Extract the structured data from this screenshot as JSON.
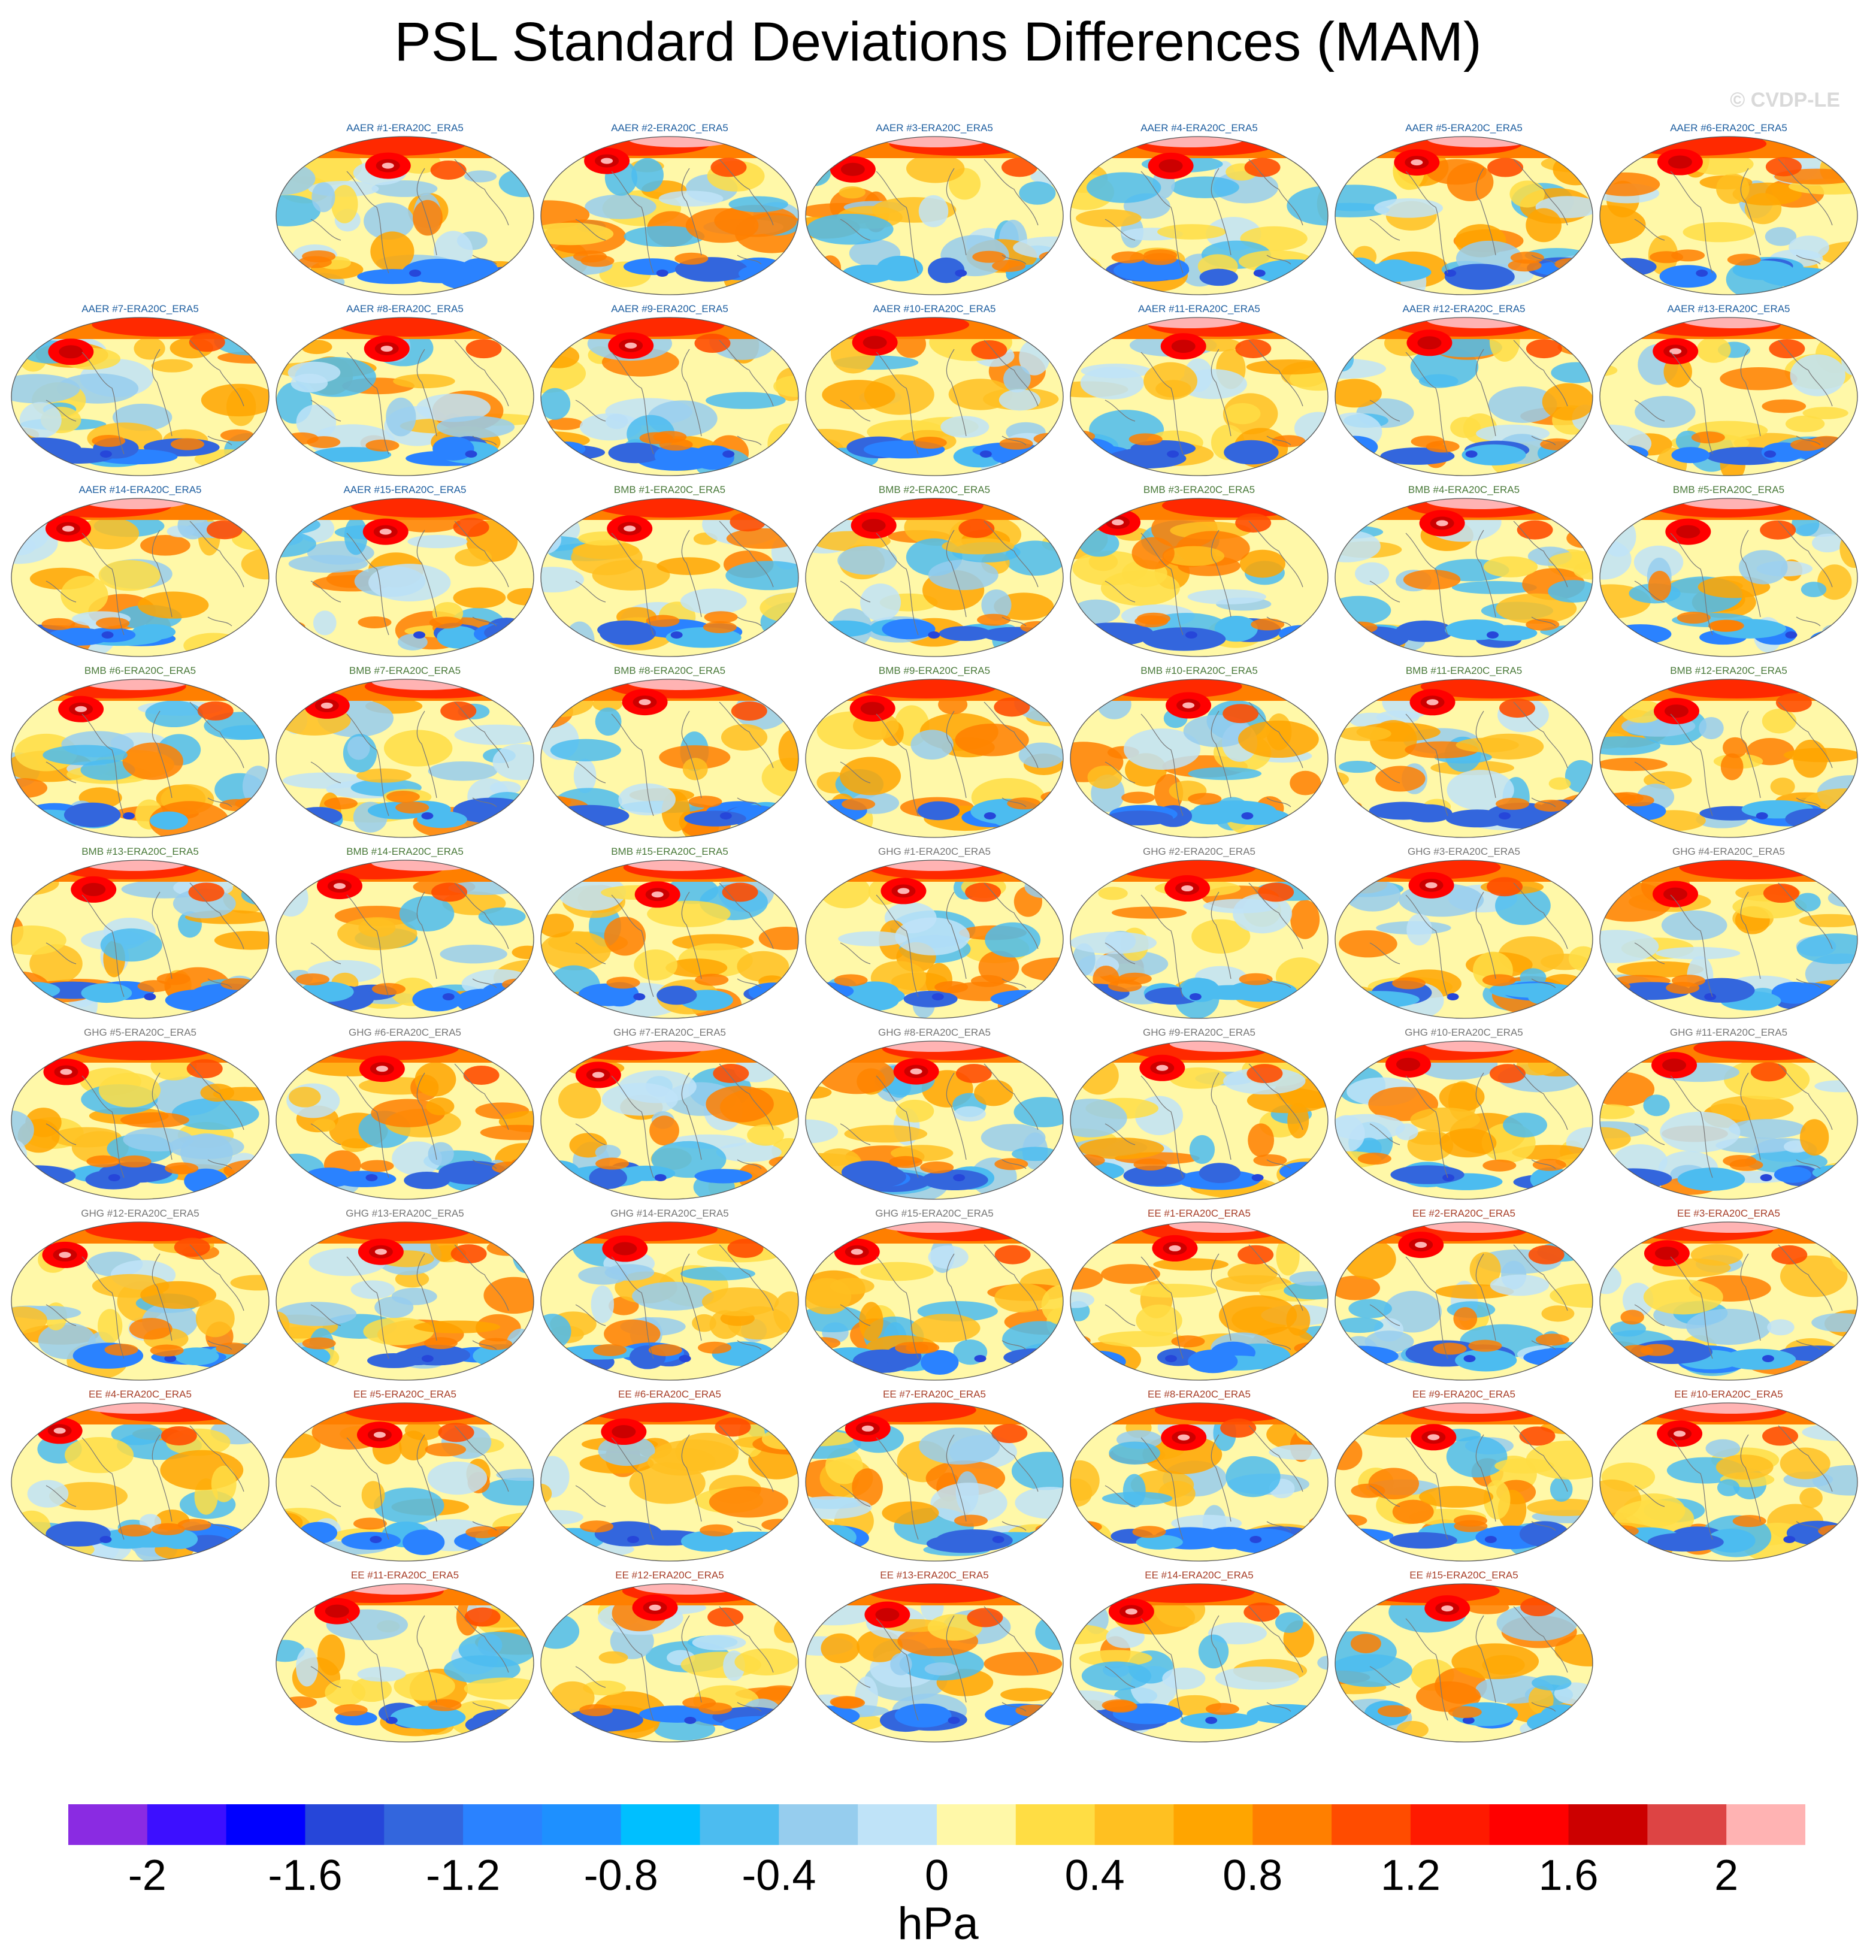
{
  "title": "PSL Standard Deviations Differences (MAM)",
  "copyright": "© CVDP-LE",
  "unit": "hPa",
  "group_colors": {
    "AAER": "#1f5fa0",
    "BMB": "#4a7a3a",
    "GHG": "#777777",
    "EE": "#a8402a"
  },
  "panels": [
    {
      "label": "AAER #1-ERA20C_ERA5",
      "group": "AAER"
    },
    {
      "label": "AAER #2-ERA20C_ERA5",
      "group": "AAER"
    },
    {
      "label": "AAER #3-ERA20C_ERA5",
      "group": "AAER"
    },
    {
      "label": "AAER #4-ERA20C_ERA5",
      "group": "AAER"
    },
    {
      "label": "AAER #5-ERA20C_ERA5",
      "group": "AAER"
    },
    {
      "label": "AAER #6-ERA20C_ERA5",
      "group": "AAER"
    },
    {
      "label": "AAER #7-ERA20C_ERA5",
      "group": "AAER"
    },
    {
      "label": "AAER #8-ERA20C_ERA5",
      "group": "AAER"
    },
    {
      "label": "AAER #9-ERA20C_ERA5",
      "group": "AAER"
    },
    {
      "label": "AAER #10-ERA20C_ERA5",
      "group": "AAER"
    },
    {
      "label": "AAER #11-ERA20C_ERA5",
      "group": "AAER"
    },
    {
      "label": "AAER #12-ERA20C_ERA5",
      "group": "AAER"
    },
    {
      "label": "AAER #13-ERA20C_ERA5",
      "group": "AAER"
    },
    {
      "label": "AAER #14-ERA20C_ERA5",
      "group": "AAER"
    },
    {
      "label": "AAER #15-ERA20C_ERA5",
      "group": "AAER"
    },
    {
      "label": "BMB #1-ERA20C_ERA5",
      "group": "BMB"
    },
    {
      "label": "BMB #2-ERA20C_ERA5",
      "group": "BMB"
    },
    {
      "label": "BMB #3-ERA20C_ERA5",
      "group": "BMB"
    },
    {
      "label": "BMB #4-ERA20C_ERA5",
      "group": "BMB"
    },
    {
      "label": "BMB #5-ERA20C_ERA5",
      "group": "BMB"
    },
    {
      "label": "BMB #6-ERA20C_ERA5",
      "group": "BMB"
    },
    {
      "label": "BMB #7-ERA20C_ERA5",
      "group": "BMB"
    },
    {
      "label": "BMB #8-ERA20C_ERA5",
      "group": "BMB"
    },
    {
      "label": "BMB #9-ERA20C_ERA5",
      "group": "BMB"
    },
    {
      "label": "BMB #10-ERA20C_ERA5",
      "group": "BMB"
    },
    {
      "label": "BMB #11-ERA20C_ERA5",
      "group": "BMB"
    },
    {
      "label": "BMB #12-ERA20C_ERA5",
      "group": "BMB"
    },
    {
      "label": "BMB #13-ERA20C_ERA5",
      "group": "BMB"
    },
    {
      "label": "BMB #14-ERA20C_ERA5",
      "group": "BMB"
    },
    {
      "label": "BMB #15-ERA20C_ERA5",
      "group": "BMB"
    },
    {
      "label": "GHG #1-ERA20C_ERA5",
      "group": "GHG"
    },
    {
      "label": "GHG #2-ERA20C_ERA5",
      "group": "GHG"
    },
    {
      "label": "GHG #3-ERA20C_ERA5",
      "group": "GHG"
    },
    {
      "label": "GHG #4-ERA20C_ERA5",
      "group": "GHG"
    },
    {
      "label": "GHG #5-ERA20C_ERA5",
      "group": "GHG"
    },
    {
      "label": "GHG #6-ERA20C_ERA5",
      "group": "GHG"
    },
    {
      "label": "GHG #7-ERA20C_ERA5",
      "group": "GHG"
    },
    {
      "label": "GHG #8-ERA20C_ERA5",
      "group": "GHG"
    },
    {
      "label": "GHG #9-ERA20C_ERA5",
      "group": "GHG"
    },
    {
      "label": "GHG #10-ERA20C_ERA5",
      "group": "GHG"
    },
    {
      "label": "GHG #11-ERA20C_ERA5",
      "group": "GHG"
    },
    {
      "label": "GHG #12-ERA20C_ERA5",
      "group": "GHG"
    },
    {
      "label": "GHG #13-ERA20C_ERA5",
      "group": "GHG"
    },
    {
      "label": "GHG #14-ERA20C_ERA5",
      "group": "GHG"
    },
    {
      "label": "GHG #15-ERA20C_ERA5",
      "group": "GHG"
    },
    {
      "label": "EE #1-ERA20C_ERA5",
      "group": "EE"
    },
    {
      "label": "EE #2-ERA20C_ERA5",
      "group": "EE"
    },
    {
      "label": "EE #3-ERA20C_ERA5",
      "group": "EE"
    },
    {
      "label": "EE #4-ERA20C_ERA5",
      "group": "EE"
    },
    {
      "label": "EE #5-ERA20C_ERA5",
      "group": "EE"
    },
    {
      "label": "EE #6-ERA20C_ERA5",
      "group": "EE"
    },
    {
      "label": "EE #7-ERA20C_ERA5",
      "group": "EE"
    },
    {
      "label": "EE #8-ERA20C_ERA5",
      "group": "EE"
    },
    {
      "label": "EE #9-ERA20C_ERA5",
      "group": "EE"
    },
    {
      "label": "EE #10-ERA20C_ERA5",
      "group": "EE"
    },
    {
      "label": "EE #11-ERA20C_ERA5",
      "group": "EE"
    },
    {
      "label": "EE #12-ERA20C_ERA5",
      "group": "EE"
    },
    {
      "label": "EE #13-ERA20C_ERA5",
      "group": "EE"
    },
    {
      "label": "EE #14-ERA20C_ERA5",
      "group": "EE"
    },
    {
      "label": "EE #15-ERA20C_ERA5",
      "group": "EE"
    }
  ],
  "colorbar": {
    "colors": [
      "#8a2be2",
      "#3d0fff",
      "#0000ff",
      "#2646d9",
      "#3366dd",
      "#2a82ff",
      "#1e90ff",
      "#00bfff",
      "#4cbcf0",
      "#96cdee",
      "#bfe3f8",
      "#fff8a8",
      "#ffdd44",
      "#ffc021",
      "#ffa500",
      "#ff7f00",
      "#ff4c00",
      "#ff1a00",
      "#ff0000",
      "#cc0000",
      "#dd4444",
      "#ffb3b3"
    ],
    "tick_labels": [
      "-2",
      "-1.6",
      "-1.2",
      "-0.8",
      "-0.4",
      "0",
      "0.4",
      "0.8",
      "1.2",
      "1.6",
      "2"
    ]
  }
}
